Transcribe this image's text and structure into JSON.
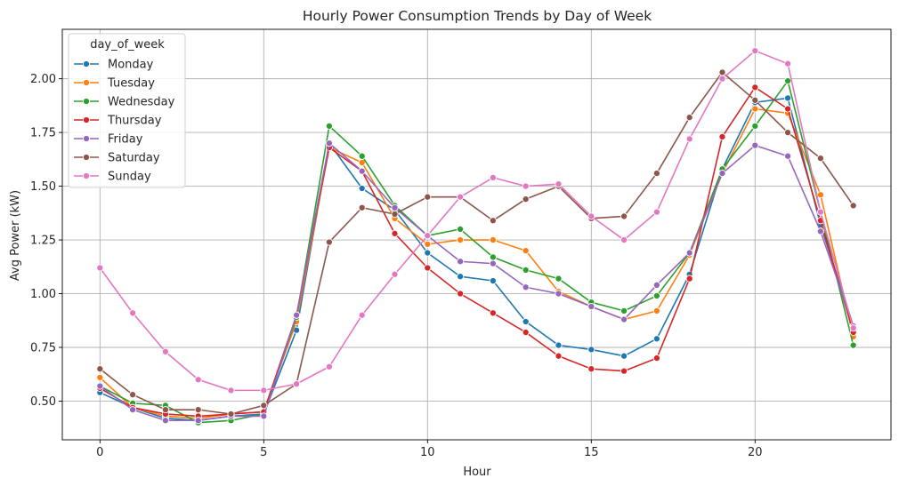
{
  "chart_data": {
    "type": "line",
    "title": "Hourly Power Consumption Trends by Day of Week",
    "xlabel": "Hour",
    "ylabel": "Avg Power (kW)",
    "xlim": [
      -1.15,
      24.15
    ],
    "ylim": [
      0.32,
      2.23
    ],
    "xticks": [
      0,
      5,
      10,
      15,
      20
    ],
    "yticks": [
      0.5,
      0.75,
      1.0,
      1.25,
      1.5,
      1.75,
      2.0
    ],
    "ytick_labels": [
      "0.50",
      "0.75",
      "1.00",
      "1.25",
      "1.50",
      "1.75",
      "2.00"
    ],
    "grid": true,
    "legend": {
      "title": "day_of_week",
      "placement": "upper-left"
    },
    "x": [
      0,
      1,
      2,
      3,
      4,
      5,
      6,
      7,
      8,
      9,
      10,
      11,
      12,
      13,
      14,
      15,
      16,
      17,
      18,
      19,
      20,
      21,
      22,
      23
    ],
    "series": [
      {
        "name": "Monday",
        "color": "#1f77b4",
        "values": [
          0.54,
          0.47,
          0.42,
          0.41,
          0.43,
          0.44,
          0.83,
          1.7,
          1.49,
          1.39,
          1.19,
          1.08,
          1.06,
          0.87,
          0.76,
          0.74,
          0.71,
          0.79,
          1.09,
          1.58,
          1.89,
          1.91,
          1.32,
          0.85
        ]
      },
      {
        "name": "Tuesday",
        "color": "#ff7f0e",
        "values": [
          0.61,
          0.47,
          0.43,
          0.42,
          0.44,
          0.45,
          0.87,
          1.68,
          1.61,
          1.35,
          1.23,
          1.25,
          1.25,
          1.2,
          1.01,
          0.94,
          0.88,
          0.92,
          1.18,
          1.56,
          1.86,
          1.84,
          1.46,
          0.8
        ]
      },
      {
        "name": "Wednesday",
        "color": "#2ca02c",
        "values": [
          0.57,
          0.49,
          0.48,
          0.4,
          0.41,
          0.44,
          0.89,
          1.78,
          1.64,
          1.41,
          1.27,
          1.3,
          1.17,
          1.11,
          1.07,
          0.96,
          0.92,
          0.99,
          1.19,
          1.58,
          1.78,
          1.99,
          1.38,
          0.76
        ]
      },
      {
        "name": "Thursday",
        "color": "#d62728",
        "values": [
          0.56,
          0.47,
          0.44,
          0.43,
          0.44,
          0.45,
          0.9,
          1.68,
          1.57,
          1.28,
          1.12,
          1.0,
          0.91,
          0.82,
          0.71,
          0.65,
          0.64,
          0.7,
          1.07,
          1.73,
          1.96,
          1.86,
          1.34,
          0.82
        ]
      },
      {
        "name": "Friday",
        "color": "#9467bd",
        "values": [
          0.57,
          0.46,
          0.41,
          0.41,
          0.43,
          0.43,
          0.9,
          1.7,
          1.57,
          1.4,
          1.27,
          1.15,
          1.14,
          1.03,
          1.0,
          0.94,
          0.88,
          1.04,
          1.19,
          1.56,
          1.69,
          1.64,
          1.29,
          0.85
        ]
      },
      {
        "name": "Saturday",
        "color": "#8c564b",
        "values": [
          0.65,
          0.53,
          0.46,
          0.46,
          0.44,
          0.48,
          0.58,
          1.24,
          1.4,
          1.37,
          1.45,
          1.45,
          1.34,
          1.44,
          1.5,
          1.35,
          1.36,
          1.56,
          1.82,
          2.03,
          1.9,
          1.75,
          1.63,
          1.41
        ]
      },
      {
        "name": "Sunday",
        "color": "#e377c2",
        "values": [
          1.12,
          0.91,
          0.73,
          0.6,
          0.55,
          0.55,
          0.58,
          0.66,
          0.9,
          1.09,
          1.27,
          1.45,
          1.54,
          1.5,
          1.51,
          1.36,
          1.25,
          1.38,
          1.72,
          2.0,
          2.13,
          2.07,
          1.38,
          0.84
        ]
      }
    ]
  }
}
